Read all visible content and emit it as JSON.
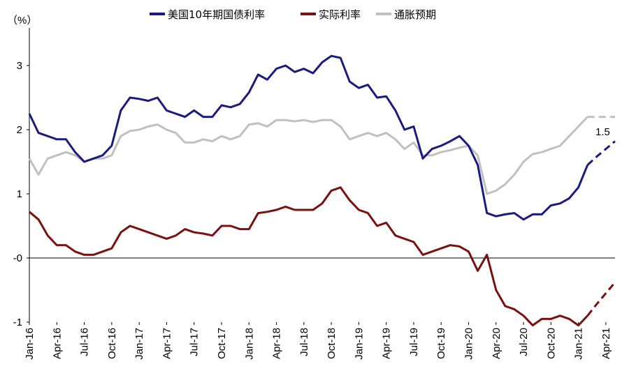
{
  "chart_data": {
    "type": "line",
    "y_unit_label": "（%）",
    "ylim": [
      -1,
      3.5
    ],
    "y_ticks": [
      {
        "value": 3,
        "label": "3"
      },
      {
        "value": 2,
        "label": "2"
      },
      {
        "value": 1,
        "label": "1"
      },
      {
        "value": 0,
        "label": "-0"
      },
      {
        "value": -1,
        "label": "-1"
      }
    ],
    "x_ticks": [
      "Jan-16",
      "Apr-16",
      "Jul-16",
      "Oct-16",
      "Jan-17",
      "Apr-17",
      "Jul-17",
      "Oct-17",
      "Jan-18",
      "Apr-18",
      "Jul-18",
      "Oct-18",
      "Jan-19",
      "Apr-19",
      "Jul-19",
      "Oct-19",
      "Jan-20",
      "Apr-20",
      "Jul-20",
      "Oct-20",
      "Jan-21",
      "Apr-21"
    ],
    "x_range": [
      "Jan-16",
      "May-21"
    ],
    "legend_position": "top",
    "annotation": {
      "text": "1.5",
      "color": "#000000"
    },
    "series": [
      {
        "name": "美国10年期国债利率",
        "color": "#1a1a80",
        "x": [
          "Jan-16",
          "Feb-16",
          "Mar-16",
          "Apr-16",
          "May-16",
          "Jun-16",
          "Jul-16",
          "Aug-16",
          "Sep-16",
          "Oct-16",
          "Nov-16",
          "Dec-16",
          "Jan-17",
          "Feb-17",
          "Mar-17",
          "Apr-17",
          "May-17",
          "Jun-17",
          "Jul-17",
          "Aug-17",
          "Sep-17",
          "Oct-17",
          "Nov-17",
          "Dec-17",
          "Jan-18",
          "Feb-18",
          "Mar-18",
          "Apr-18",
          "May-18",
          "Jun-18",
          "Jul-18",
          "Aug-18",
          "Sep-18",
          "Oct-18",
          "Nov-18",
          "Dec-18",
          "Jan-19",
          "Feb-19",
          "Mar-19",
          "Apr-19",
          "May-19",
          "Jun-19",
          "Jul-19",
          "Aug-19",
          "Sep-19",
          "Oct-19",
          "Nov-19",
          "Dec-19",
          "Jan-20",
          "Feb-20",
          "Mar-20",
          "Apr-20",
          "May-20",
          "Jun-20",
          "Jul-20",
          "Aug-20",
          "Sep-20",
          "Oct-20",
          "Nov-20",
          "Dec-20",
          "Jan-21",
          "Feb-21"
        ],
        "values": [
          2.25,
          1.95,
          1.9,
          1.85,
          1.85,
          1.65,
          1.5,
          1.55,
          1.6,
          1.75,
          2.3,
          2.5,
          2.48,
          2.45,
          2.5,
          2.3,
          2.25,
          2.2,
          2.3,
          2.2,
          2.2,
          2.38,
          2.35,
          2.4,
          2.58,
          2.86,
          2.78,
          2.95,
          3.0,
          2.9,
          2.95,
          2.88,
          3.05,
          3.15,
          3.12,
          2.75,
          2.65,
          2.7,
          2.5,
          2.52,
          2.3,
          2.0,
          2.05,
          1.55,
          1.7,
          1.75,
          1.82,
          1.9,
          1.75,
          1.45,
          0.7,
          0.65,
          0.68,
          0.7,
          0.6,
          0.68,
          0.68,
          0.82,
          0.85,
          0.93,
          1.1,
          1.45
        ]
      },
      {
        "name": "实际利率",
        "color": "#7b1010",
        "x": [
          "Jan-16",
          "Feb-16",
          "Mar-16",
          "Apr-16",
          "May-16",
          "Jun-16",
          "Jul-16",
          "Aug-16",
          "Sep-16",
          "Oct-16",
          "Nov-16",
          "Dec-16",
          "Jan-17",
          "Feb-17",
          "Mar-17",
          "Apr-17",
          "May-17",
          "Jun-17",
          "Jul-17",
          "Aug-17",
          "Sep-17",
          "Oct-17",
          "Nov-17",
          "Dec-17",
          "Jan-18",
          "Feb-18",
          "Mar-18",
          "Apr-18",
          "May-18",
          "Jun-18",
          "Jul-18",
          "Aug-18",
          "Sep-18",
          "Oct-18",
          "Nov-18",
          "Dec-18",
          "Jan-19",
          "Feb-19",
          "Mar-19",
          "Apr-19",
          "May-19",
          "Jun-19",
          "Jul-19",
          "Aug-19",
          "Sep-19",
          "Oct-19",
          "Nov-19",
          "Dec-19",
          "Jan-20",
          "Feb-20",
          "Mar-20",
          "Apr-20",
          "May-20",
          "Jun-20",
          "Jul-20",
          "Aug-20",
          "Sep-20",
          "Oct-20",
          "Nov-20",
          "Dec-20",
          "Jan-21",
          "Feb-21"
        ],
        "values": [
          0.72,
          0.6,
          0.35,
          0.2,
          0.2,
          0.1,
          0.05,
          0.05,
          0.1,
          0.15,
          0.4,
          0.5,
          0.45,
          0.4,
          0.35,
          0.3,
          0.35,
          0.45,
          0.4,
          0.38,
          0.35,
          0.5,
          0.5,
          0.45,
          0.45,
          0.7,
          0.72,
          0.75,
          0.8,
          0.75,
          0.75,
          0.75,
          0.85,
          1.05,
          1.1,
          0.9,
          0.75,
          0.7,
          0.5,
          0.55,
          0.35,
          0.3,
          0.25,
          0.05,
          0.1,
          0.15,
          0.2,
          0.18,
          0.1,
          -0.2,
          0.05,
          -0.5,
          -0.75,
          -0.8,
          -0.9,
          -1.05,
          -0.95,
          -0.95,
          -0.9,
          -0.95,
          -1.05,
          -0.9
        ]
      },
      {
        "name": "通胀预期",
        "color": "#c0c0c0",
        "x": [
          "Jan-16",
          "Feb-16",
          "Mar-16",
          "Apr-16",
          "May-16",
          "Jun-16",
          "Jul-16",
          "Aug-16",
          "Sep-16",
          "Oct-16",
          "Nov-16",
          "Dec-16",
          "Jan-17",
          "Feb-17",
          "Mar-17",
          "Apr-17",
          "May-17",
          "Jun-17",
          "Jul-17",
          "Aug-17",
          "Sep-17",
          "Oct-17",
          "Nov-17",
          "Dec-17",
          "Jan-18",
          "Feb-18",
          "Mar-18",
          "Apr-18",
          "May-18",
          "Jun-18",
          "Jul-18",
          "Aug-18",
          "Sep-18",
          "Oct-18",
          "Nov-18",
          "Dec-18",
          "Jan-19",
          "Feb-19",
          "Mar-19",
          "Apr-19",
          "May-19",
          "Jun-19",
          "Jul-19",
          "Aug-19",
          "Sep-19",
          "Oct-19",
          "Nov-19",
          "Dec-19",
          "Jan-20",
          "Feb-20",
          "Mar-20",
          "Apr-20",
          "May-20",
          "Jun-20",
          "Jul-20",
          "Aug-20",
          "Sep-20",
          "Oct-20",
          "Nov-20",
          "Dec-20",
          "Jan-21",
          "Feb-21"
        ],
        "values": [
          1.55,
          1.3,
          1.55,
          1.6,
          1.65,
          1.6,
          1.5,
          1.55,
          1.55,
          1.6,
          1.9,
          1.98,
          2.0,
          2.05,
          2.08,
          2.0,
          1.95,
          1.8,
          1.8,
          1.85,
          1.82,
          1.9,
          1.85,
          1.9,
          2.08,
          2.1,
          2.05,
          2.15,
          2.15,
          2.13,
          2.15,
          2.12,
          2.15,
          2.15,
          2.05,
          1.85,
          1.9,
          1.95,
          1.9,
          1.95,
          1.85,
          1.7,
          1.8,
          1.6,
          1.6,
          1.65,
          1.68,
          1.72,
          1.75,
          1.6,
          1.0,
          1.05,
          1.15,
          1.3,
          1.5,
          1.62,
          1.65,
          1.7,
          1.75,
          1.9,
          2.05,
          2.2
        ]
      }
    ],
    "projections": [
      {
        "name": "美国10年期国债利率",
        "color": "#1a1a80",
        "x": [
          "Feb-21",
          "Mar-21",
          "Apr-21",
          "May-21"
        ],
        "values": [
          1.45,
          1.58,
          1.7,
          1.82
        ]
      },
      {
        "name": "实际利率",
        "color": "#7b1010",
        "x": [
          "Feb-21",
          "Mar-21",
          "Apr-21",
          "May-21"
        ],
        "values": [
          -0.9,
          -0.72,
          -0.55,
          -0.38
        ]
      },
      {
        "name": "通胀预期",
        "color": "#c0c0c0",
        "x": [
          "Feb-21",
          "Mar-21",
          "Apr-21",
          "May-21"
        ],
        "values": [
          2.2,
          2.2,
          2.2,
          2.2
        ]
      }
    ]
  }
}
